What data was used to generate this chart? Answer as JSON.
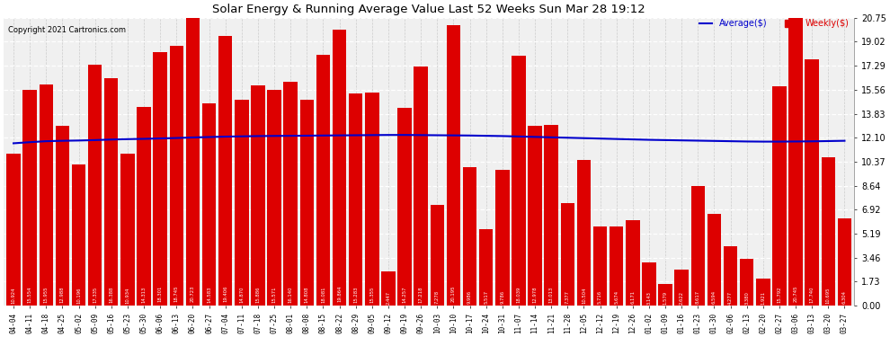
{
  "title": "Solar Energy & Running Average Value Last 52 Weeks Sun Mar 28 19:12",
  "copyright": "Copyright 2021 Cartronics.com",
  "bar_color": "#dd0000",
  "avg_color": "#0000cc",
  "background_color": "#ffffff",
  "plot_bg_color": "#f0f0f0",
  "categories": [
    "04-04",
    "04-11",
    "04-18",
    "04-25",
    "05-02",
    "05-09",
    "05-16",
    "05-23",
    "05-30",
    "06-06",
    "06-13",
    "06-20",
    "06-27",
    "07-04",
    "07-11",
    "07-18",
    "07-25",
    "08-01",
    "08-08",
    "08-15",
    "08-22",
    "08-29",
    "09-05",
    "09-12",
    "09-19",
    "09-26",
    "10-03",
    "10-10",
    "10-17",
    "10-24",
    "10-31",
    "11-07",
    "11-14",
    "11-21",
    "11-28",
    "12-05",
    "12-12",
    "12-19",
    "12-26",
    "01-02",
    "01-09",
    "01-16",
    "01-23",
    "01-30",
    "02-06",
    "02-13",
    "02-20",
    "02-27",
    "03-06",
    "03-13",
    "03-20",
    "03-27"
  ],
  "weekly_values": [
    10.924,
    15.554,
    15.955,
    12.988,
    10.196,
    17.335,
    16.388,
    10.934,
    14.313,
    18.301,
    18.745,
    20.723,
    14.583,
    19.406,
    14.87,
    15.886,
    15.571,
    16.14,
    14.808,
    18.081,
    19.864,
    15.283,
    15.355,
    2.447,
    14.257,
    17.218,
    7.278,
    20.195,
    9.986,
    5.517,
    9.786,
    18.039,
    12.978,
    13.013,
    7.377,
    10.504,
    5.716,
    5.674,
    6.171,
    3.143,
    1.579,
    2.622,
    8.617,
    6.594,
    4.277,
    3.38,
    1.921,
    15.792,
    20.745,
    17.74,
    10.695,
    6.304
  ],
  "avg_values": [
    11.7,
    11.78,
    11.85,
    11.88,
    11.9,
    11.93,
    11.97,
    12.0,
    12.02,
    12.05,
    12.08,
    12.12,
    12.15,
    12.18,
    12.2,
    12.22,
    12.23,
    12.24,
    12.25,
    12.26,
    12.27,
    12.28,
    12.29,
    12.3,
    12.3,
    12.29,
    12.28,
    12.27,
    12.26,
    12.24,
    12.22,
    12.19,
    12.16,
    12.13,
    12.1,
    12.07,
    12.04,
    12.01,
    11.98,
    11.95,
    11.93,
    11.91,
    11.89,
    11.87,
    11.85,
    11.83,
    11.82,
    11.82,
    11.83,
    11.84,
    11.86,
    11.88
  ],
  "yticks": [
    0.0,
    1.73,
    3.46,
    5.19,
    6.92,
    8.64,
    10.37,
    12.1,
    13.83,
    15.56,
    17.29,
    19.02,
    20.75
  ],
  "ylim": [
    0,
    20.75
  ],
  "legend_avg": "Average($)",
  "legend_weekly": "Weekly($)"
}
